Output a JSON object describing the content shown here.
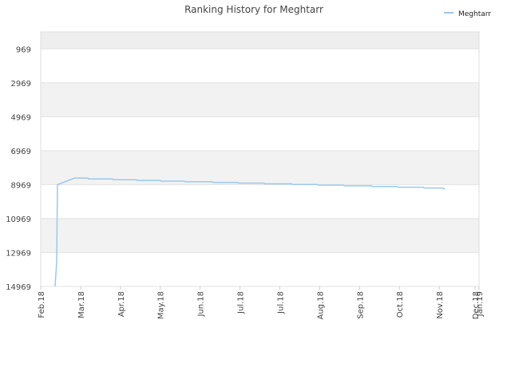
{
  "chart_data": {
    "type": "line",
    "title": "Ranking History for Meghtarr",
    "y_inverted": true,
    "ylim": [
      -31,
      14969
    ],
    "yticks": [
      969,
      2969,
      4969,
      6969,
      8969,
      10969,
      12969,
      14969
    ],
    "xlim": [
      0,
      11
    ],
    "xticks": [
      {
        "value": 0,
        "label": "Feb.18"
      },
      {
        "value": 1,
        "label": "Mar.18"
      },
      {
        "value": 2,
        "label": "Apr.18"
      },
      {
        "value": 3,
        "label": "May.18"
      },
      {
        "value": 4,
        "label": "Jun.18"
      },
      {
        "value": 5,
        "label": "Jul.18"
      },
      {
        "value": 6,
        "label": "Jul.18"
      },
      {
        "value": 7,
        "label": "Aug.18"
      },
      {
        "value": 8,
        "label": "Sep.18"
      },
      {
        "value": 9,
        "label": "Oct.18"
      },
      {
        "value": 10,
        "label": "Nov.18"
      },
      {
        "value": 10.9,
        "label": "Dec.18"
      },
      {
        "value": 11,
        "label": "Jan.19"
      }
    ],
    "grid": true,
    "legend": "top-right",
    "series": [
      {
        "name": "Meghtarr",
        "color": "#99c9ef",
        "x": [
          0.36,
          0.4,
          0.42,
          0.85,
          1.18,
          1.2,
          1.8,
          1.82,
          2.4,
          2.42,
          3.0,
          3.02,
          3.6,
          3.62,
          4.3,
          4.32,
          4.95,
          4.97,
          5.6,
          5.62,
          6.3,
          6.32,
          6.95,
          6.97,
          7.6,
          7.62,
          8.3,
          8.32,
          8.95,
          8.97,
          9.6,
          9.62,
          10.1,
          10.12,
          10.15
        ],
        "values": [
          14969,
          13500,
          8969,
          8580,
          8580,
          8630,
          8630,
          8680,
          8680,
          8720,
          8720,
          8760,
          8760,
          8800,
          8800,
          8840,
          8840,
          8880,
          8880,
          8920,
          8920,
          8960,
          8960,
          9000,
          9000,
          9040,
          9040,
          9080,
          9080,
          9120,
          9120,
          9170,
          9170,
          9220,
          9220
        ]
      }
    ]
  }
}
